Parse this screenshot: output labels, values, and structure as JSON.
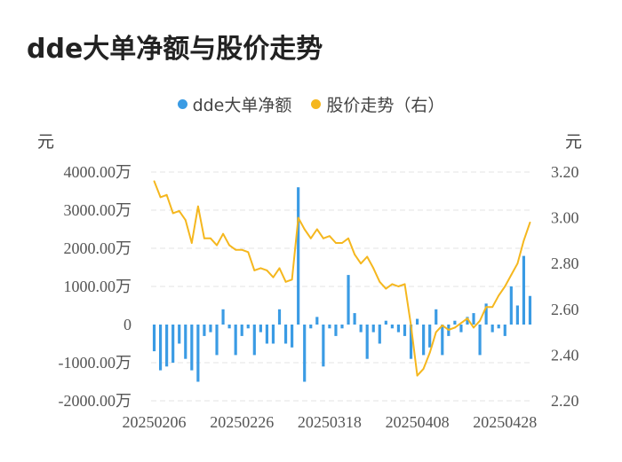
{
  "title": "dde大单净额与股价走势",
  "legend": {
    "items": [
      {
        "label": "dde大单净额",
        "color": "#3a9be4"
      },
      {
        "label": "股价走势（右）",
        "color": "#f5b71e"
      }
    ]
  },
  "colors": {
    "bar": "#3a9be4",
    "line": "#f5b71e",
    "grid": "#e3e3e3"
  },
  "chart_data": {
    "type": "bar+line",
    "title": "dde大单净额与股价走势",
    "left_axis": {
      "unit": "元",
      "ticks": [
        4000,
        3000,
        2000,
        1000,
        0,
        -1000,
        -2000
      ],
      "tick_labels": [
        "4000.00万",
        "3000.00万",
        "2000.00万",
        "1000.00万",
        "0",
        "-1000.00万",
        "-2000.00万"
      ],
      "ylim": [
        -2000,
        4000
      ]
    },
    "right_axis": {
      "unit": "元",
      "ticks": [
        3.2,
        3.0,
        2.8,
        2.6,
        2.4,
        2.2
      ],
      "tick_labels": [
        "3.20",
        "3.00",
        "2.80",
        "2.60",
        "2.40",
        "2.20"
      ],
      "ylim": [
        2.2,
        3.2
      ]
    },
    "x_tick_labels": [
      "20250206",
      "20250226",
      "20250318",
      "20250408",
      "20250428"
    ],
    "x_tick_index": [
      0,
      14,
      28,
      42,
      56
    ],
    "grid": true,
    "legend_position": "top-center",
    "series": [
      {
        "name": "dde大单净额",
        "type": "bar",
        "axis": "left",
        "values": [
          -700,
          -1200,
          -1100,
          -1000,
          -500,
          -900,
          -1200,
          -1500,
          -300,
          -200,
          -800,
          400,
          -100,
          -800,
          -300,
          -100,
          -800,
          -200,
          -500,
          -500,
          400,
          -500,
          -600,
          3600,
          -1500,
          -100,
          200,
          -1100,
          -100,
          -300,
          -100,
          1300,
          300,
          -200,
          -900,
          -200,
          -500,
          100,
          -100,
          -200,
          -300,
          -900,
          150,
          -800,
          -600,
          400,
          -800,
          -300,
          100,
          -200,
          200,
          300,
          -800,
          550,
          -200,
          -100,
          -300,
          1000,
          500,
          1800,
          750
        ]
      },
      {
        "name": "股价走势（右）",
        "type": "line",
        "axis": "right",
        "values": [
          3.16,
          3.09,
          3.1,
          3.02,
          3.03,
          2.99,
          2.89,
          3.05,
          2.91,
          2.91,
          2.88,
          2.93,
          2.88,
          2.86,
          2.86,
          2.85,
          2.77,
          2.78,
          2.77,
          2.74,
          2.78,
          2.72,
          2.73,
          3.0,
          2.95,
          2.91,
          2.95,
          2.91,
          2.92,
          2.89,
          2.89,
          2.91,
          2.84,
          2.8,
          2.83,
          2.78,
          2.72,
          2.69,
          2.71,
          2.7,
          2.71,
          2.53,
          2.31,
          2.34,
          2.41,
          2.5,
          2.53,
          2.51,
          2.52,
          2.54,
          2.56,
          2.52,
          2.55,
          2.61,
          2.61,
          2.66,
          2.7,
          2.75,
          2.8,
          2.9,
          2.98
        ]
      }
    ]
  }
}
